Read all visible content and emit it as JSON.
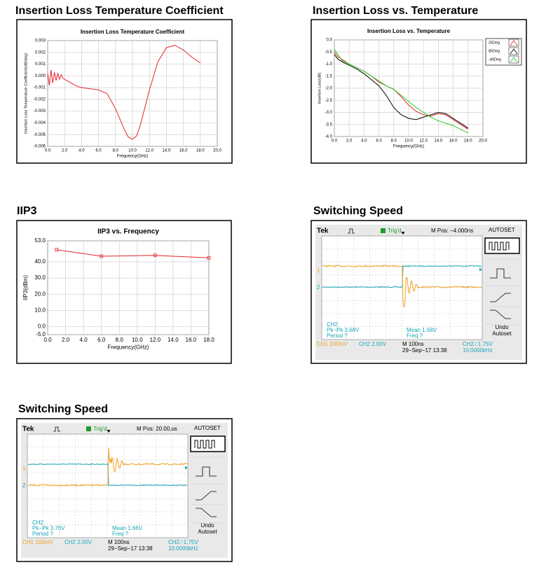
{
  "headings": [
    "Insertion Loss Temperature Coefficient",
    "Insertion Loss vs. Temperature",
    "IIP3",
    "Switching Speed",
    "Switching Speed"
  ],
  "chart_data": [
    {
      "type": "line",
      "title": "Insertion Loss Temperature Coefficient",
      "y_label": "Insertion Loss Temperature Coefficient(dB/deg)",
      "x_label": "Frequency(GHz)",
      "color": "#e8242a",
      "grid": true,
      "x": [
        0,
        0.2,
        0.4,
        0.6,
        0.8,
        1,
        1.2,
        1.4,
        1.6,
        1.8,
        2,
        2.5,
        3,
        3.5,
        4,
        5,
        6,
        7,
        8,
        9,
        9.5,
        10,
        10.5,
        11,
        12,
        13,
        14,
        15,
        16,
        17,
        18
      ],
      "values": [
        0.0002,
        -0.0008,
        0.0005,
        -0.0006,
        0.0003,
        -0.0004,
        0.0002,
        -0.0003,
        0.0001,
        -0.0002,
        -0.0003,
        -0.0005,
        -0.0007,
        -0.0009,
        -0.001,
        -0.0011,
        -0.0012,
        -0.0015,
        -0.0028,
        -0.0045,
        -0.0052,
        -0.0054,
        -0.0051,
        -0.004,
        -0.0012,
        0.0012,
        0.0024,
        0.0026,
        0.0022,
        0.0016,
        0.0011
      ],
      "xlim": [
        0,
        20
      ],
      "ylim": [
        -0.006,
        0.003
      ],
      "xticks": [
        {
          "value": 0,
          "label": "0.0"
        },
        {
          "value": 2,
          "label": "2.0"
        },
        {
          "value": 4,
          "label": "4.0"
        },
        {
          "value": 6,
          "label": "6.0"
        },
        {
          "value": 8,
          "label": "8.0"
        },
        {
          "value": 10,
          "label": "10.0"
        },
        {
          "value": 12,
          "label": "12.0"
        },
        {
          "value": 14,
          "label": "14.0"
        },
        {
          "value": 16,
          "label": "16.0"
        },
        {
          "value": 18,
          "label": "18.0"
        },
        {
          "value": 20,
          "label": "20.0"
        }
      ],
      "yticks": [
        0.003,
        0.002,
        0.001,
        {
          "value": 0,
          "label": "0.000"
        },
        -0.001,
        -0.002,
        -0.003,
        -0.004,
        -0.005,
        -0.006
      ]
    },
    {
      "type": "line",
      "title": "Insertion Loss vs. Temperature",
      "y_label": "Insertion Loss(dB)",
      "x_label": "Frequency(GHz)",
      "grid": true,
      "legend": "right",
      "x": [
        0,
        0.5,
        1,
        2,
        3,
        4,
        5,
        6,
        7,
        8,
        9,
        10,
        11,
        12,
        13,
        14,
        15,
        16,
        17,
        18
      ],
      "series": [
        {
          "name": "25Deg",
          "color": "#e8242a",
          "values": [
            -0.5,
            -0.7,
            -0.8,
            -1.0,
            -1.15,
            -1.3,
            -1.5,
            -1.75,
            -1.9,
            -2.05,
            -2.35,
            -2.7,
            -2.95,
            -3.1,
            -3.15,
            -3.05,
            -3.1,
            -3.3,
            -3.5,
            -3.7
          ]
        },
        {
          "name": "85Deg",
          "color": "#000000",
          "values": [
            -0.6,
            -0.8,
            -0.9,
            -1.05,
            -1.2,
            -1.4,
            -1.65,
            -1.9,
            -2.3,
            -2.8,
            -3.1,
            -3.25,
            -3.3,
            -3.2,
            -3.1,
            -3.0,
            -3.05,
            -3.25,
            -3.45,
            -3.65
          ]
        },
        {
          "name": "-40Deg",
          "color": "#22cc22",
          "values": [
            -0.4,
            -0.6,
            -0.85,
            -1.0,
            -1.15,
            -1.3,
            -1.5,
            -1.7,
            -1.9,
            -2.05,
            -2.3,
            -2.55,
            -2.8,
            -3.0,
            -3.2,
            -3.35,
            -3.45,
            -3.55,
            -3.7,
            -3.85
          ]
        }
      ],
      "xlim": [
        0,
        20
      ],
      "ylim": [
        -4,
        0
      ],
      "xticks": [
        {
          "value": 0,
          "label": "0.0"
        },
        {
          "value": 2,
          "label": "2.0"
        },
        {
          "value": 4,
          "label": "4.0"
        },
        {
          "value": 6,
          "label": "6.0"
        },
        {
          "value": 8,
          "label": "8.0"
        },
        {
          "value": 10,
          "label": "10.0"
        },
        {
          "value": 12,
          "label": "12.0"
        },
        {
          "value": 14,
          "label": "14.0"
        },
        {
          "value": 16,
          "label": "16.0"
        },
        {
          "value": 18,
          "label": "18.0"
        },
        {
          "value": 20,
          "label": "20.0"
        }
      ],
      "yticks": [
        {
          "value": 0,
          "label": "0.0"
        },
        -0.5,
        {
          "value": -1,
          "label": "-1.0"
        },
        -1.5,
        {
          "value": -2,
          "label": "-2.0"
        },
        -2.5,
        {
          "value": -3,
          "label": "-3.0"
        },
        -3.5,
        {
          "value": -4,
          "label": "-4.0"
        }
      ]
    },
    {
      "type": "line",
      "title": "IIP3 vs. Frequency",
      "y_label": "IIP3(dBm)",
      "x_label": "Frequency(GHz)",
      "color": "#e8242a",
      "grid": true,
      "markers": true,
      "x": [
        1,
        6,
        12,
        18
      ],
      "values": [
        47.5,
        43.5,
        44,
        42.5
      ],
      "xlim": [
        0,
        18
      ],
      "ylim": [
        -5,
        53
      ],
      "xticks": [
        {
          "value": 0,
          "label": "0.0"
        },
        {
          "value": 2,
          "label": "2.0"
        },
        {
          "value": 4,
          "label": "4.0"
        },
        {
          "value": 6,
          "label": "6.0"
        },
        {
          "value": 8,
          "label": "8.0"
        },
        {
          "value": 10,
          "label": "10.0"
        },
        {
          "value": 12,
          "label": "12.0"
        },
        {
          "value": 14,
          "label": "14.0"
        },
        {
          "value": 16,
          "label": "16.0"
        },
        {
          "value": 18,
          "label": "18.0"
        }
      ],
      "yticks": [
        {
          "value": 53,
          "label": "53.0"
        },
        {
          "value": 40,
          "label": "40.0"
        },
        {
          "value": 30,
          "label": "30.0"
        },
        {
          "value": 20,
          "label": "20.0"
        },
        {
          "value": 10,
          "label": "10.0"
        },
        {
          "value": 0,
          "label": "0.0"
        },
        {
          "value": -5,
          "label": "-5.0"
        }
      ]
    }
  ],
  "scopes": [
    {
      "brand": "Tek",
      "trigger": "Trig'd",
      "position": "M Pos: −4.000ns",
      "menu": "AUTOSET",
      "ch1_marker": "1",
      "ch2_marker": "2",
      "meas_channel": "CH2",
      "pkpk": "Pk−Pk 3.68V",
      "period": "Period ?",
      "mean": "Mean 1.68V",
      "freq": "Freq ?",
      "undo": "Undo",
      "autoset": "Autoset",
      "ch1": "CH1  100mV",
      "ch2": "CH2  2.00V",
      "timebase": "M 100ns",
      "date": "29−Sep−17 13:38",
      "trigger_level": "CH2 ∕ 1.75V",
      "frequency": "10.0000kHz"
    },
    {
      "brand": "Tek",
      "trigger": "Trig'd",
      "position": "M Pos: 20.00,us",
      "menu": "AUTOSET",
      "ch1_marker": "1",
      "ch2_marker": "2",
      "meas_channel": "CH2",
      "pkpk": "Pk−Pk 3.76V",
      "period": "Period ?",
      "mean": "Mean 1.66V",
      "freq": "Freq ?",
      "undo": "Undo",
      "autoset": "Autoset",
      "ch1": "CH1  100mV",
      "ch2": "CH2  2.00V",
      "timebase": "M 100ns",
      "date": "29−Sep−17 13:38",
      "trigger_level": "CH2 ∕ 1.75V",
      "frequency": "10.0000kHz"
    }
  ]
}
